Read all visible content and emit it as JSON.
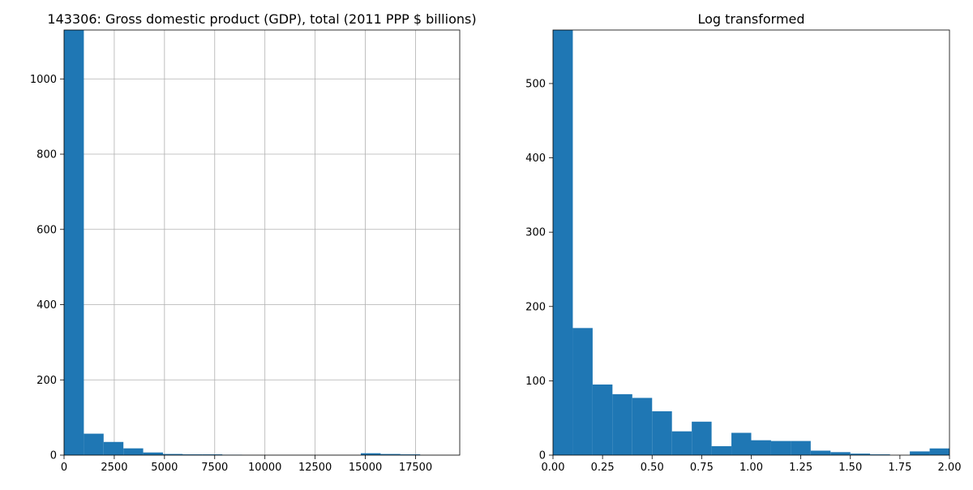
{
  "chart_data": [
    {
      "type": "bar",
      "title": "143306: Gross domestic product (GDP), total (2011 PPP $ billions)",
      "xlabel": "",
      "ylabel": "",
      "grid": true,
      "xlim": [
        0,
        19700
      ],
      "ylim": [
        0,
        1130
      ],
      "xticks": [
        0,
        2500,
        5000,
        7500,
        10000,
        12500,
        15000,
        17500
      ],
      "xtick_labels": [
        "0",
        "2500",
        "5000",
        "7500",
        "10000",
        "12500",
        "15000",
        "17500"
      ],
      "yticks": [
        0,
        200,
        400,
        600,
        800,
        1000
      ],
      "ytick_labels": [
        "0",
        "200",
        "400",
        "600",
        "800",
        "1000"
      ],
      "bin_edges": [
        0,
        985,
        1970,
        2955,
        3940,
        4925,
        5910,
        6895,
        7880,
        8865,
        9850,
        10835,
        11820,
        12805,
        13790,
        14775,
        15760,
        16745,
        17730,
        18715,
        19700
      ],
      "counts": [
        1130,
        57,
        35,
        18,
        7,
        3,
        2,
        2,
        1,
        0,
        0,
        0,
        0,
        0,
        0,
        5,
        3,
        2,
        0,
        0
      ],
      "color": "#1f77b4"
    },
    {
      "type": "bar",
      "title": "Log transformed",
      "xlabel": "",
      "ylabel": "",
      "grid": false,
      "xlim": [
        0,
        2.0
      ],
      "ylim": [
        0,
        572
      ],
      "xticks": [
        0,
        0.25,
        0.5,
        0.75,
        1.0,
        1.25,
        1.5,
        1.75,
        2.0
      ],
      "xtick_labels": [
        "0.00",
        "0.25",
        "0.50",
        "0.75",
        "1.00",
        "1.25",
        "1.50",
        "1.75",
        "2.00"
      ],
      "yticks": [
        0,
        100,
        200,
        300,
        400,
        500
      ],
      "ytick_labels": [
        "0",
        "100",
        "200",
        "300",
        "400",
        "500"
      ],
      "bin_edges": [
        0,
        0.1,
        0.2,
        0.3,
        0.4,
        0.5,
        0.6,
        0.7,
        0.8,
        0.9,
        1.0,
        1.1,
        1.2,
        1.3,
        1.4,
        1.5,
        1.6,
        1.7,
        1.8,
        1.9,
        2.0
      ],
      "counts": [
        572,
        171,
        95,
        82,
        77,
        59,
        32,
        45,
        12,
        30,
        20,
        19,
        19,
        6,
        4,
        2,
        1,
        0,
        5,
        9
      ],
      "color": "#1f77b4"
    }
  ]
}
